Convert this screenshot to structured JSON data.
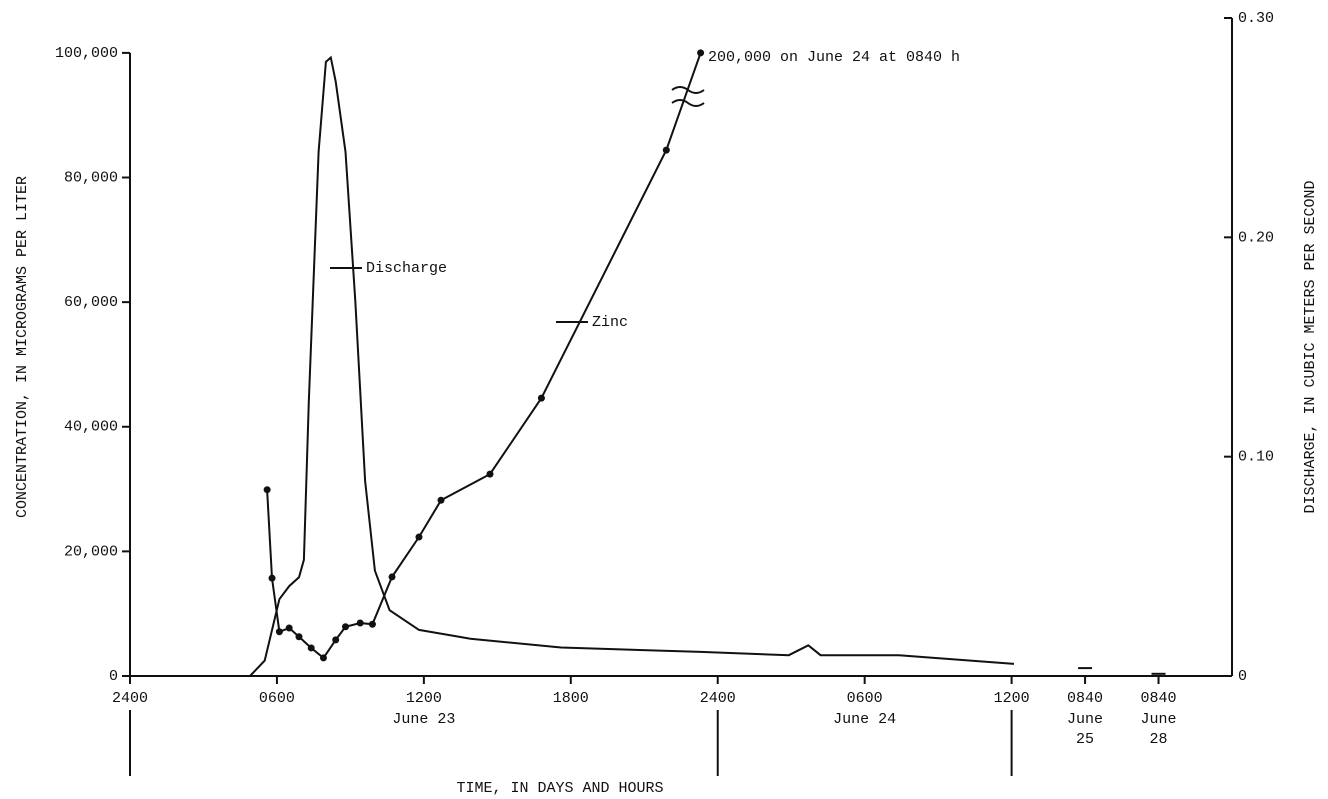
{
  "chart_data": {
    "type": "line",
    "y_label": "CONCENTRATION, IN MICROGRAMS PER LITER",
    "y2_label": "DISCHARGE, IN CUBIC METERS PER SECOND",
    "x_label": "TIME, IN DAYS AND HOURS",
    "annotation": "200,000 on June 24 at 0840 h",
    "xlim": [
      0,
      45
    ],
    "xticks": [
      {
        "value": 0,
        "label": "2400"
      },
      {
        "value": 6,
        "label": "0600"
      },
      {
        "value": 12,
        "label": "1200"
      },
      {
        "value": 18,
        "label": "1800"
      },
      {
        "value": 24,
        "label": "2400"
      },
      {
        "value": 30,
        "label": "0600"
      },
      {
        "value": 36,
        "label": "1200"
      },
      {
        "value": 39,
        "label": "0840"
      },
      {
        "value": 42,
        "label": "0840"
      }
    ],
    "day_labels": [
      {
        "value": 12,
        "label": [
          "June 23"
        ]
      },
      {
        "value": 30,
        "label": [
          "June 24"
        ]
      },
      {
        "value": 39,
        "label": [
          "June",
          "25"
        ]
      },
      {
        "value": 42,
        "label": [
          "June",
          "28"
        ]
      }
    ],
    "day_boundaries": [
      0,
      24,
      36
    ],
    "ylim": [
      0,
      105600
    ],
    "yticks": [
      0,
      {
        "value": 20000,
        "label": "20,000"
      },
      {
        "value": 40000,
        "label": "40,000"
      },
      {
        "value": 60000,
        "label": "60,000"
      },
      {
        "value": 80000,
        "label": "80,000"
      },
      {
        "value": 100000,
        "label": "100,000"
      }
    ],
    "y2lim": [
      0,
      0.3
    ],
    "y2ticks": [
      0,
      {
        "value": 0.1,
        "label": "0.10"
      },
      {
        "value": 0.2,
        "label": "0.20"
      },
      {
        "value": 0.3,
        "label": "0.30"
      }
    ],
    "series": [
      {
        "name": "Discharge",
        "color": "#111111",
        "axis": "y2",
        "markers": false,
        "x": [
          0,
          4.9,
          5.5,
          6.1,
          6.5,
          6.9,
          7.1,
          7.3,
          7.7,
          8.0,
          8.2,
          8.4,
          8.8,
          9.2,
          9.6,
          10.0,
          10.6,
          11.8,
          13.9,
          17.6,
          23.3,
          26.9,
          27.7,
          28.2,
          31.4,
          36.1,
          37.5,
          39,
          40.5,
          42
        ],
        "values": [
          0,
          0,
          0.007,
          0.035,
          0.041,
          0.045,
          0.053,
          0.125,
          0.239,
          0.28,
          0.282,
          0.271,
          0.239,
          0.171,
          0.089,
          0.048,
          0.03,
          0.021,
          0.017,
          0.013,
          0.011,
          0.0095,
          0.014,
          0.0095,
          0.0095,
          0.0055,
          null,
          0.0036,
          null,
          0.001
        ]
      },
      {
        "name": "Zinc",
        "color": "#111111",
        "axis": "y",
        "markers": true,
        "x": [
          5.6,
          5.8,
          6.1,
          6.5,
          6.9,
          7.4,
          7.9,
          8.4,
          8.8,
          9.4,
          9.9,
          10.7,
          11.8,
          12.7,
          14.7,
          16.8,
          21.9,
          23.3
        ],
        "values": [
          29900,
          15700,
          7100,
          7700,
          6300,
          4500,
          2900,
          5800,
          7900,
          8500,
          8300,
          15900,
          22300,
          28200,
          32400,
          44600,
          84400,
          100000
        ]
      }
    ]
  }
}
